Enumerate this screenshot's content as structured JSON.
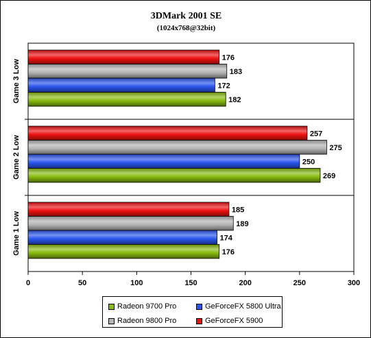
{
  "chart_data": {
    "type": "bar",
    "orientation": "horizontal",
    "title": "3DMark 2001 SE",
    "subtitle": "(1024x768@32bit)",
    "categories": [
      "Game 3 Low",
      "Game 2 Low",
      "Game 1 Low"
    ],
    "series": [
      {
        "name": "GeForceFX 5900",
        "color": "#ee1111",
        "values": [
          176,
          257,
          185
        ]
      },
      {
        "name": "Radeon 9800 Pro",
        "color": "#b4b4b4",
        "values": [
          183,
          275,
          189
        ]
      },
      {
        "name": "GeForceFX 5800 Ultra",
        "color": "#2a55ee",
        "values": [
          172,
          250,
          174
        ]
      },
      {
        "name": "Radeon 9700 Pro",
        "color": "#88bb11",
        "values": [
          182,
          269,
          176
        ]
      }
    ],
    "xlim": [
      0,
      300
    ],
    "xticks": [
      "0",
      "50",
      "100",
      "150",
      "200",
      "250",
      "300"
    ],
    "grid": false,
    "legend_position": "bottom"
  },
  "legend": [
    {
      "label": "Radeon 9700 Pro",
      "color": "#88bb11"
    },
    {
      "label": "GeForceFX 5800 Ultra",
      "color": "#2a55ee"
    },
    {
      "label": "Radeon 9800 Pro",
      "color": "#b4b4b4"
    },
    {
      "label": "GeForceFX 5900",
      "color": "#ee1111"
    }
  ]
}
